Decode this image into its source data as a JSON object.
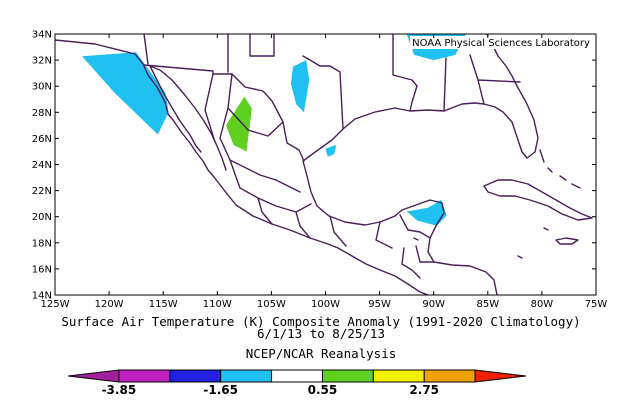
{
  "map": {
    "credit": "NOAA Physical Sciences Laboratory",
    "lat_labels": [
      "14N",
      "16N",
      "18N",
      "20N",
      "22N",
      "24N",
      "26N",
      "28N",
      "30N",
      "32N",
      "34N"
    ],
    "lon_labels": [
      "125W",
      "120W",
      "115W",
      "110W",
      "105W",
      "100W",
      "95W",
      "90W",
      "85W",
      "80W",
      "75W"
    ],
    "extent": {
      "lon_min": -125,
      "lon_max": -75,
      "lat_min": 14,
      "lat_max": 34
    }
  },
  "title": {
    "line1": "Surface Air Temperature (K) Composite Anomaly (1991-2020 Climatology)",
    "line2": "6/1/13   to 8/25/13",
    "line3": "NCEP/NCAR Reanalysis"
  },
  "colorbar": {
    "colors": [
      "#a020a0",
      "#c020c0",
      "#2020e0",
      "#20c0f0",
      "#ffffff",
      "#60d020",
      "#f0f000",
      "#f0a000",
      "#f02000"
    ],
    "labels": [
      "-3.85",
      "-1.65",
      "0.55",
      "2.75"
    ]
  },
  "anomaly_regions": [
    {
      "name": "baja-west-cool",
      "color": "#20c0f0",
      "value_range": "-1.65 to -0.55",
      "coords": [
        [
          -122.5,
          32.3
        ],
        [
          -117.5,
          32.6
        ],
        [
          -114.8,
          29.5
        ],
        [
          -114.5,
          28.0
        ],
        [
          -115.5,
          26.3
        ],
        [
          -119.5,
          29.5
        ]
      ]
    },
    {
      "name": "sierra-madre-warm",
      "color": "#60d020",
      "value_range": "0.55 to 1.65",
      "coords": [
        [
          -109.2,
          27.0
        ],
        [
          -107.5,
          29.2
        ],
        [
          -106.8,
          28.3
        ],
        [
          -107.3,
          25.0
        ],
        [
          -108.5,
          25.5
        ],
        [
          -109.0,
          26.6
        ]
      ]
    },
    {
      "name": "texas-west-cool",
      "color": "#20c0f0",
      "value_range": "-1.65 to -0.55",
      "coords": [
        [
          -103.0,
          31.5
        ],
        [
          -101.8,
          32.0
        ],
        [
          -101.5,
          30.5
        ],
        [
          -102.0,
          28.0
        ],
        [
          -102.7,
          28.6
        ],
        [
          -103.2,
          30.2
        ]
      ]
    },
    {
      "name": "texas-south-cool",
      "color": "#20c0f0",
      "value_range": "-1.65 to -0.55",
      "coords": [
        [
          -100.0,
          25.2
        ],
        [
          -99.0,
          25.5
        ],
        [
          -99.2,
          24.8
        ],
        [
          -99.8,
          24.6
        ]
      ]
    },
    {
      "name": "gulf-north-cool",
      "color": "#20c0f0",
      "value_range": "-1.65 to -0.55",
      "coords": [
        [
          -92.5,
          34.0
        ],
        [
          -87.0,
          34.0
        ],
        [
          -88.0,
          32.4
        ],
        [
          -90.0,
          32.0
        ],
        [
          -91.8,
          32.4
        ]
      ]
    },
    {
      "name": "yucatan-cool",
      "color": "#20c0f0",
      "value_range": "-1.65 to -0.55",
      "coords": [
        [
          -92.5,
          20.4
        ],
        [
          -90.5,
          20.7
        ],
        [
          -89.3,
          21.3
        ],
        [
          -88.8,
          20.1
        ],
        [
          -89.7,
          19.3
        ],
        [
          -91.5,
          19.7
        ]
      ]
    }
  ]
}
